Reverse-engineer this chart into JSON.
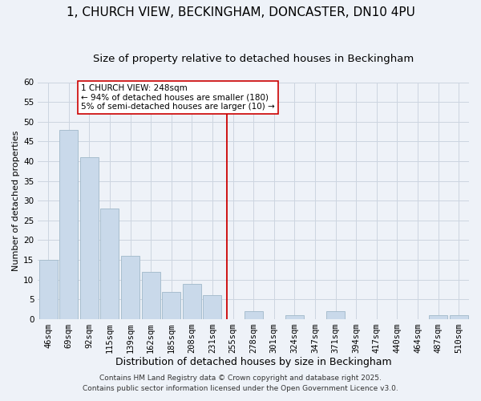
{
  "title": "1, CHURCH VIEW, BECKINGHAM, DONCASTER, DN10 4PU",
  "subtitle": "Size of property relative to detached houses in Beckingham",
  "xlabel": "Distribution of detached houses by size in Beckingham",
  "ylabel": "Number of detached properties",
  "bar_labels": [
    "46sqm",
    "69sqm",
    "92sqm",
    "115sqm",
    "139sqm",
    "162sqm",
    "185sqm",
    "208sqm",
    "231sqm",
    "255sqm",
    "278sqm",
    "301sqm",
    "324sqm",
    "347sqm",
    "371sqm",
    "394sqm",
    "417sqm",
    "440sqm",
    "464sqm",
    "487sqm",
    "510sqm"
  ],
  "bar_values": [
    15,
    48,
    41,
    28,
    16,
    12,
    7,
    9,
    6,
    0,
    2,
    0,
    1,
    0,
    2,
    0,
    0,
    0,
    0,
    1,
    1
  ],
  "bar_color": "#c9d9ea",
  "bar_edge_color": "#a8bece",
  "vline_color": "#cc0000",
  "ylim": [
    0,
    60
  ],
  "yticks": [
    0,
    5,
    10,
    15,
    20,
    25,
    30,
    35,
    40,
    45,
    50,
    55,
    60
  ],
  "annotation_title": "1 CHURCH VIEW: 248sqm",
  "annotation_line1": "← 94% of detached houses are smaller (180)",
  "annotation_line2": "5% of semi-detached houses are larger (10) →",
  "annotation_box_color": "#ffffff",
  "annotation_box_edge": "#cc0000",
  "grid_color": "#ccd5e0",
  "bg_color": "#eef2f8",
  "footer1": "Contains HM Land Registry data © Crown copyright and database right 2025.",
  "footer2": "Contains public sector information licensed under the Open Government Licence v3.0.",
  "title_fontsize": 11,
  "subtitle_fontsize": 9.5,
  "xlabel_fontsize": 9,
  "ylabel_fontsize": 8,
  "tick_fontsize": 7.5,
  "annotation_fontsize": 7.5,
  "footer_fontsize": 6.5
}
